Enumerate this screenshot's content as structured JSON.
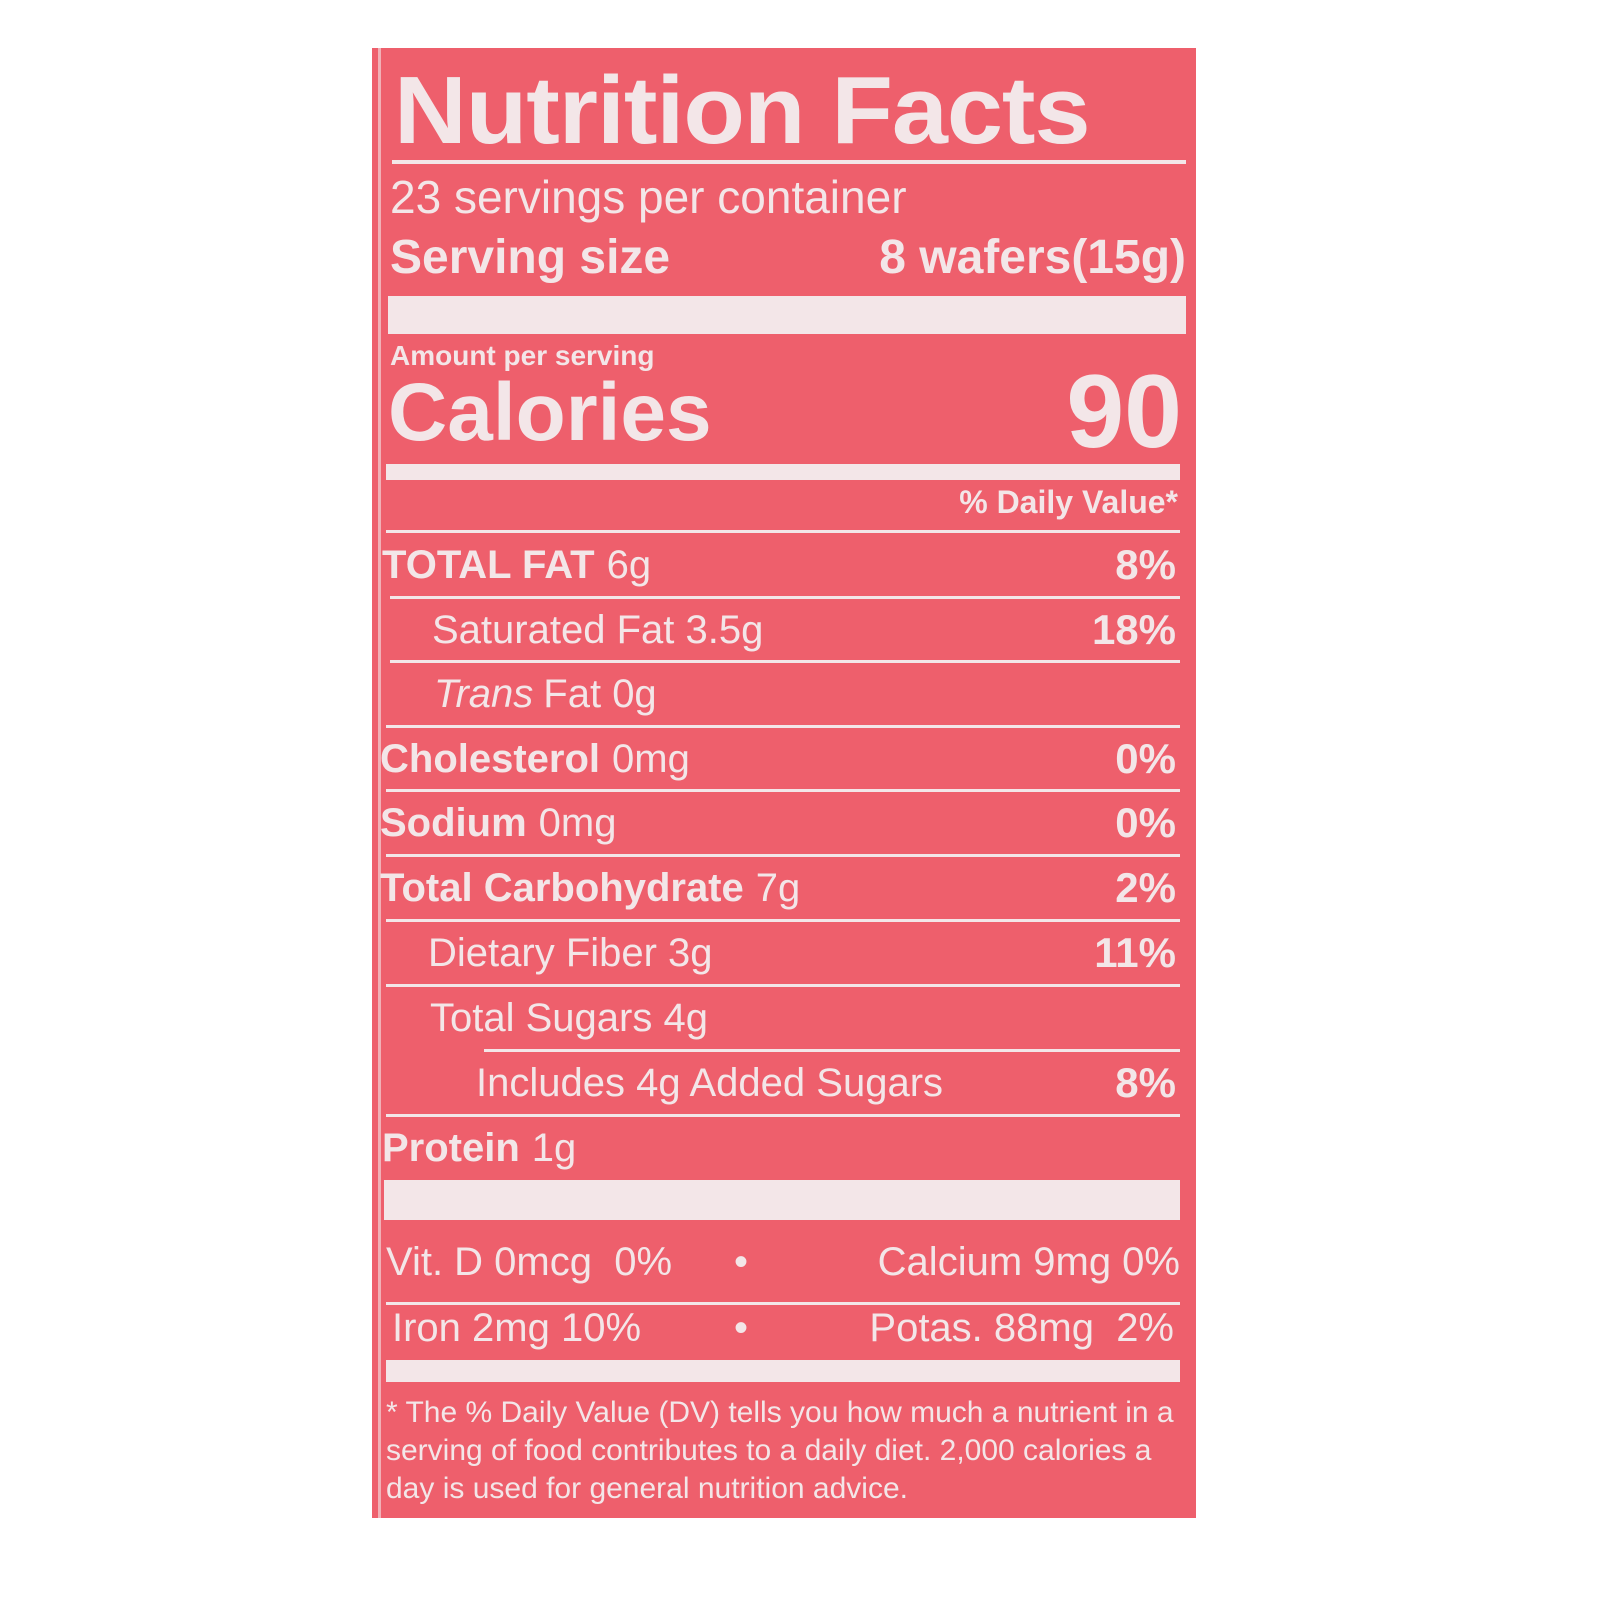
{
  "title": "Nutrition Facts",
  "servings_per_container": "23 servings per container",
  "serving_size_label": "Serving size",
  "serving_size_value": "8 wafers(15g)",
  "amount_per_serving": "Amount per serving",
  "calories_label": "Calories",
  "calories_value": "90",
  "daily_value_header": "% Daily Value*",
  "nutrients": [
    {
      "name": "TOTAL FAT",
      "amount": "6g",
      "dv": "8%"
    },
    {
      "name": "Saturated Fat 3.5g",
      "amount": "",
      "dv": "18%"
    },
    {
      "name": "Trans",
      "amount": "Fat 0g",
      "dv": ""
    },
    {
      "name": "Cholesterol",
      "amount": "0mg",
      "dv": "0%"
    },
    {
      "name": "Sodium",
      "amount": "0mg",
      "dv": "0%"
    },
    {
      "name": "Total Carbohydrate",
      "amount": "7g",
      "dv": "2%"
    },
    {
      "name": "Dietary Fiber 3g",
      "amount": "",
      "dv": "11%"
    },
    {
      "name": "Total Sugars 4g",
      "amount": "",
      "dv": ""
    },
    {
      "name": "Includes 4g Added Sugars",
      "amount": "",
      "dv": "8%"
    },
    {
      "name": "Protein",
      "amount": "1g",
      "dv": ""
    }
  ],
  "vitamins": [
    {
      "left": "Vit. D 0mcg  0%",
      "sep": "•",
      "right": "Calcium 9mg 0%"
    },
    {
      "left": "Iron 2mg 10%",
      "sep": "•",
      "right": "Potas. 88mg  2%"
    }
  ],
  "footnote": "* The % Daily Value (DV) tells you how much a nutrient in a serving of food contributes to a daily diet. 2,000 calories a day is used for general nutrition advice.",
  "colors": {
    "label_background": "#ee5f6c",
    "text": "#f3e6e8"
  }
}
